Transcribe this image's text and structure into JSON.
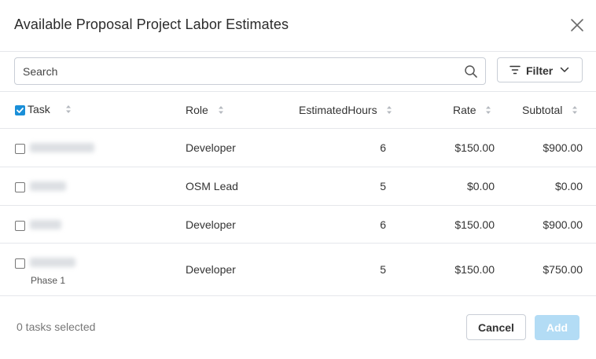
{
  "dialog": {
    "title": "Available Proposal Project Labor Estimates"
  },
  "search": {
    "placeholder": "Search",
    "value": ""
  },
  "filter": {
    "label": "Filter"
  },
  "table": {
    "columns": {
      "task": "Task",
      "role": "Role",
      "hours": "EstimatedHours",
      "rate": "Rate",
      "subtotal": "Subtotal"
    },
    "header_checkbox_checked": true,
    "rows": [
      {
        "task": "",
        "subtask": "",
        "role": "Developer",
        "hours": "6",
        "rate": "$150.00",
        "subtotal": "$900.00",
        "checked": false
      },
      {
        "task": "",
        "subtask": "",
        "role": "OSM Lead",
        "hours": "5",
        "rate": "$0.00",
        "subtotal": "$0.00",
        "checked": false
      },
      {
        "task": "",
        "subtask": "",
        "role": "Developer",
        "hours": "6",
        "rate": "$150.00",
        "subtotal": "$900.00",
        "checked": false
      },
      {
        "task": "",
        "subtask": "Phase 1",
        "role": "Developer",
        "hours": "5",
        "rate": "$150.00",
        "subtotal": "$750.00",
        "checked": false
      }
    ]
  },
  "footer": {
    "selected_count": "0 tasks selected",
    "cancel_label": "Cancel",
    "add_label": "Add"
  },
  "colors": {
    "accent": "#1a8fd8",
    "add_disabled": "#b3dcf5"
  }
}
